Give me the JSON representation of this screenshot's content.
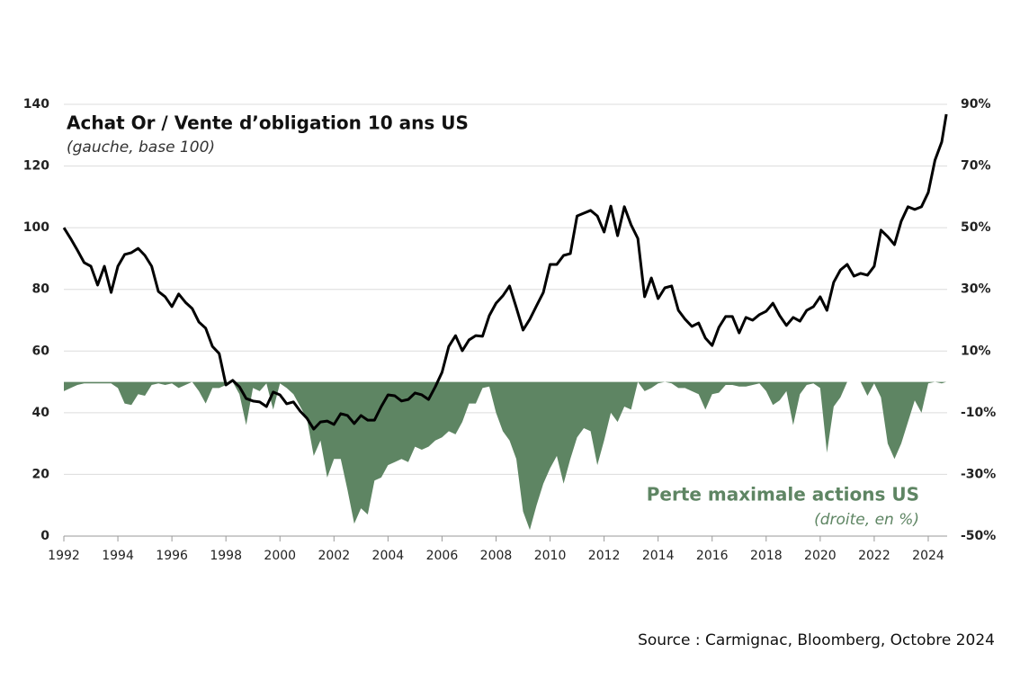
{
  "chart_data": {
    "type": "line",
    "title": "Achat Or / Vente d’obligation 10 ans US",
    "subtitle": "(gauche, base 100)",
    "annotations": [
      "(droite, en %)"
    ],
    "source": "Source : Carmignac, Bloomberg, Octobre 2024",
    "grid": true,
    "xlim": [
      1992,
      2024.7
    ],
    "xticks": [
      1992,
      1994,
      1996,
      1998,
      2000,
      2002,
      2004,
      2006,
      2008,
      2010,
      2012,
      2014,
      2016,
      2018,
      2020,
      2022,
      2024
    ],
    "ylim": [
      0,
      140
    ],
    "yticks": [
      0,
      20,
      40,
      60,
      80,
      100,
      120,
      140
    ],
    "y2lim": [
      -50,
      90
    ],
    "y2ticks": [
      {
        "value": -50,
        "label": "-50%"
      },
      {
        "value": -30,
        "label": "-30%"
      },
      {
        "value": -10,
        "label": "-10%"
      },
      {
        "value": 10,
        "label": "10%"
      },
      {
        "value": 30,
        "label": "30%"
      },
      {
        "value": 50,
        "label": "50%"
      },
      {
        "value": 70,
        "label": "70%"
      },
      {
        "value": 90,
        "label": "90%"
      }
    ],
    "x": [
      1992,
      1992.25,
      1992.5,
      1992.75,
      1993,
      1993.25,
      1993.5,
      1993.75,
      1994,
      1994.25,
      1994.5,
      1994.75,
      1995,
      1995.25,
      1995.5,
      1995.75,
      1996,
      1996.25,
      1996.5,
      1996.75,
      1997,
      1997.25,
      1997.5,
      1997.75,
      1998,
      1998.25,
      1998.5,
      1998.75,
      1999,
      1999.25,
      1999.5,
      1999.75,
      2000,
      2000.25,
      2000.5,
      2000.75,
      2001,
      2001.25,
      2001.5,
      2001.75,
      2002,
      2002.25,
      2002.5,
      2002.75,
      2003,
      2003.25,
      2003.5,
      2003.75,
      2004,
      2004.25,
      2004.5,
      2004.75,
      2005,
      2005.25,
      2005.5,
      2005.75,
      2006,
      2006.25,
      2006.5,
      2006.75,
      2007,
      2007.25,
      2007.5,
      2007.75,
      2008,
      2008.25,
      2008.5,
      2008.75,
      2009,
      2009.25,
      2009.5,
      2009.75,
      2010,
      2010.25,
      2010.5,
      2010.75,
      2011,
      2011.25,
      2011.5,
      2011.75,
      2012,
      2012.25,
      2012.5,
      2012.75,
      2013,
      2013.25,
      2013.5,
      2013.75,
      2014,
      2014.25,
      2014.5,
      2014.75,
      2015,
      2015.25,
      2015.5,
      2015.75,
      2016,
      2016.25,
      2016.5,
      2016.75,
      2017,
      2017.25,
      2017.5,
      2017.75,
      2018,
      2018.25,
      2018.5,
      2018.75,
      2019,
      2019.25,
      2019.5,
      2019.75,
      2020,
      2020.25,
      2020.5,
      2020.75,
      2021,
      2021.25,
      2021.5,
      2021.75,
      2022,
      2022.25,
      2022.5,
      2022.75,
      2023,
      2023.25,
      2023.5,
      2023.75,
      2024,
      2024.25,
      2024.5,
      2024.67
    ],
    "series": [
      {
        "name": "Achat Or / Vente d’obligation 10 ans US",
        "color": "#000000",
        "axis": "y",
        "values": [
          100,
          96.5,
          92.7,
          88.7,
          87.5,
          81.4,
          87.5,
          79,
          87.5,
          91.3,
          91.9,
          93.3,
          91,
          87.5,
          79.3,
          77.6,
          74.4,
          78.5,
          75.8,
          73.8,
          69.4,
          67.4,
          61.5,
          59.2,
          49,
          50.5,
          48.4,
          44.6,
          43.8,
          43.5,
          42,
          46.7,
          45.8,
          42.9,
          43.5,
          40.5,
          38.2,
          34.7,
          37,
          37.3,
          36.2,
          39.7,
          39.1,
          36.5,
          39.1,
          37.6,
          37.6,
          42,
          45.8,
          45.5,
          43.8,
          44.3,
          46.4,
          45.8,
          44.3,
          48.4,
          53.1,
          61.5,
          65,
          60.1,
          63.6,
          65,
          64.8,
          71.5,
          75.5,
          77.9,
          81.1,
          74.1,
          66.8,
          70.3,
          74.7,
          79,
          88.1,
          88.1,
          91,
          91.6,
          103.8,
          104.7,
          105.6,
          103.8,
          98.6,
          107,
          97.4,
          106.8,
          100.9,
          96.5,
          77.6,
          83.7,
          77,
          80.5,
          81.1,
          73.2,
          70.3,
          68,
          69.1,
          64.2,
          61.8,
          67.7,
          71.2,
          71.2,
          65.9,
          70.9,
          70,
          71.8,
          72.9,
          75.5,
          71.5,
          68.3,
          70.9,
          69.7,
          73.2,
          74.4,
          77.6,
          73.2,
          82.3,
          86.3,
          88.1,
          84.3,
          85.2,
          84.6,
          87.5,
          99.2,
          97.1,
          94.5,
          102.1,
          106.8,
          105.9,
          106.8,
          111.4,
          121.9,
          127.8,
          136.8
        ]
      },
      {
        "name": "Perte maximale actions US",
        "color": "#5e8563",
        "axis": "y2",
        "values": [
          -3,
          -2,
          -1,
          -0.5,
          -0.5,
          -0.5,
          -0.5,
          -0.5,
          -2,
          -7,
          -7.5,
          -4,
          -4.5,
          -1,
          -0.5,
          -1,
          -0.5,
          -2,
          -1,
          0,
          -3,
          -7,
          -2,
          -2,
          -1,
          0,
          -4,
          -14,
          -2,
          -3,
          -0.5,
          -9,
          -0.5,
          -2,
          -4,
          -8,
          -12,
          -24,
          -19,
          -31,
          -25,
          -25,
          -35,
          -46,
          -41,
          -43,
          -32,
          -31,
          -27,
          -26,
          -25,
          -26,
          -21,
          -22,
          -21,
          -19,
          -18,
          -16,
          -17,
          -13,
          -7,
          -7,
          -2,
          -1.5,
          -10,
          -16,
          -19,
          -25,
          -42,
          -48,
          -40,
          -33,
          -28,
          -24,
          -33,
          -25,
          -18,
          -15,
          -16,
          -27,
          -19,
          -10,
          -13,
          -8,
          -9,
          0,
          -3,
          -2,
          -0.5,
          0,
          -0.5,
          -2,
          -2,
          -3,
          -4,
          -9,
          -4,
          -3.5,
          -1,
          -1,
          -1.5,
          -1.5,
          -1,
          -0.5,
          -3,
          -7.5,
          -6,
          -3,
          -14,
          -4,
          -1,
          -0.5,
          -2,
          -23,
          -8,
          -5,
          0,
          0,
          0,
          -4.5,
          -0.5,
          -5,
          -20,
          -25,
          -20,
          -13,
          -6,
          -10,
          -0.5,
          0,
          -0.5,
          0
        ]
      }
    ]
  }
}
